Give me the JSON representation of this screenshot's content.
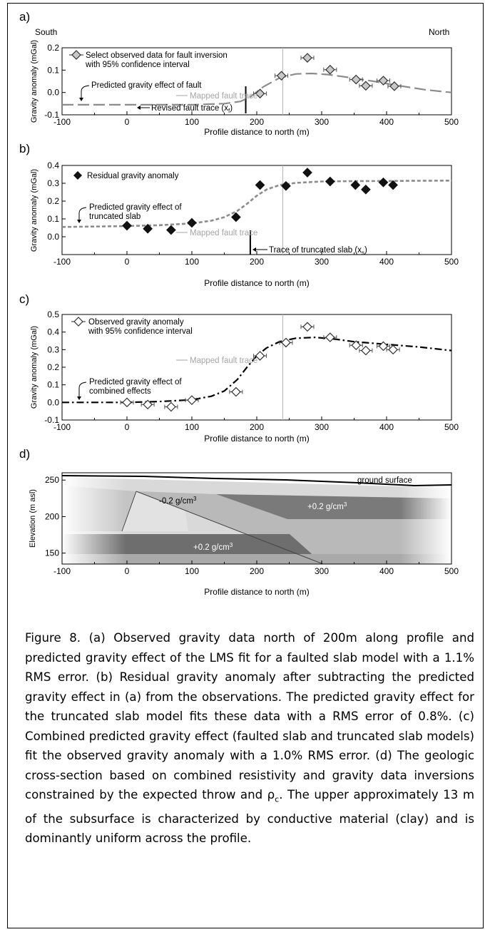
{
  "chart_data": [
    {
      "type": "scatter",
      "panel_label": "a)",
      "corner_left": "South",
      "corner_right": "North",
      "xlabel": "Profile distance to north (m)",
      "ylabel": "Gravity anomaly (mGal)",
      "xlim": [
        -100,
        500
      ],
      "ylim": [
        -0.1,
        0.2
      ],
      "xticks": [
        "-100",
        "0",
        "100",
        "200",
        "300",
        "400",
        "500"
      ],
      "yticks": [
        "-0.1",
        "0.0",
        "0.1",
        "0.2"
      ],
      "legend_line1": "Select observed data for fault inversion",
      "legend_line2": "with 95% confidence interval",
      "ann_pred": "Predicted gravity effect of fault",
      "ann_fault": "Mapped fault trace",
      "ann_revised": "Revised fault trace (x",
      "ann_revised_sub": "f",
      "ann_revised_end": ")",
      "points_x": [
        205,
        238,
        278,
        313,
        353,
        368,
        395,
        412
      ],
      "points_y": [
        -0.005,
        0.075,
        0.155,
        0.102,
        0.058,
        0.03,
        0.053,
        0.028
      ],
      "curve_x": [
        -100,
        0,
        100,
        150,
        175,
        190,
        210,
        235,
        260,
        285,
        310,
        340,
        380,
        420,
        460,
        500
      ],
      "curve_y": [
        -0.055,
        -0.055,
        -0.055,
        -0.05,
        -0.04,
        -0.02,
        0.025,
        0.065,
        0.083,
        0.085,
        0.08,
        0.068,
        0.05,
        0.03,
        0.012,
        0.0
      ],
      "mapped_fault_x": 240,
      "revised_fault_x": 183
    },
    {
      "type": "scatter",
      "panel_label": "b)",
      "xlabel": "Profile distance to north (m)",
      "ylabel": "Gravity anomaly (mGal)",
      "xlim": [
        -100,
        500
      ],
      "ylim": [
        -0.1,
        0.4
      ],
      "xticks": [
        "-100",
        "0",
        "100",
        "200",
        "300",
        "400",
        "500"
      ],
      "yticks": [
        "0.0",
        "0.1",
        "0.2",
        "0.3",
        "0.4"
      ],
      "legend_line1": "Residual gravity anomaly",
      "ann_pred1": "Predicted gravity effect of",
      "ann_pred2": "truncated slab",
      "ann_fault": "Mapped fault trace",
      "ann_trunc": "Trace of truncated slab (x",
      "ann_trunc_sub": "s",
      "ann_trunc_end": ")",
      "points_x": [
        0,
        32,
        68,
        100,
        168,
        205,
        245,
        278,
        313,
        352,
        368,
        395,
        410
      ],
      "points_y": [
        0.062,
        0.045,
        0.038,
        0.078,
        0.11,
        0.29,
        0.285,
        0.36,
        0.31,
        0.29,
        0.265,
        0.305,
        0.29
      ],
      "curve_x": [
        -100,
        0,
        50,
        100,
        130,
        150,
        170,
        185,
        200,
        215,
        235,
        260,
        300,
        350,
        400,
        450,
        500
      ],
      "curve_y": [
        0.055,
        0.06,
        0.065,
        0.075,
        0.09,
        0.11,
        0.145,
        0.185,
        0.23,
        0.265,
        0.29,
        0.302,
        0.31,
        0.312,
        0.313,
        0.314,
        0.315
      ],
      "mapped_fault_x": 240,
      "trunc_x": 190
    },
    {
      "type": "scatter",
      "panel_label": "c)",
      "xlabel": "Profile distance to north (m)",
      "ylabel": "Gravity anomaly (mGal)",
      "xlim": [
        -100,
        500
      ],
      "ylim": [
        -0.1,
        0.5
      ],
      "xticks": [
        "-100",
        "0",
        "100",
        "200",
        "300",
        "400",
        "500"
      ],
      "yticks": [
        "-0.1",
        "0.0",
        "0.1",
        "0.2",
        "0.3",
        "0.4",
        "0.5"
      ],
      "legend_line1": "Observed gravity anomaly",
      "legend_line2": "with 95% confidence interval",
      "ann_pred1": "Predicted gravity effect of",
      "ann_pred2": "combined effects",
      "ann_fault": "Mapped fault trace",
      "points_x": [
        0,
        32,
        68,
        100,
        168,
        205,
        245,
        278,
        313,
        353,
        368,
        395,
        410
      ],
      "points_y": [
        0.0,
        -0.012,
        -0.025,
        0.013,
        0.06,
        0.265,
        0.34,
        0.43,
        0.37,
        0.325,
        0.295,
        0.32,
        0.3
      ],
      "curve_x": [
        -100,
        0,
        50,
        100,
        130,
        150,
        170,
        185,
        200,
        215,
        235,
        260,
        290,
        320,
        350,
        400,
        450,
        500
      ],
      "curve_y": [
        0.0,
        0.0,
        0.005,
        0.015,
        0.035,
        0.065,
        0.13,
        0.2,
        0.265,
        0.31,
        0.345,
        0.365,
        0.37,
        0.36,
        0.345,
        0.33,
        0.315,
        0.295
      ],
      "mapped_fault_x": 240
    },
    {
      "type": "cross-section",
      "panel_label": "d)",
      "xlabel": "Profile distance to north (m)",
      "ylabel": "Elevation (m asl)",
      "xlim": [
        -100,
        500
      ],
      "ylim": [
        135,
        260
      ],
      "xticks": [
        "-100",
        "0",
        "100",
        "200",
        "300",
        "400",
        "500"
      ],
      "yticks": [
        "150",
        "200",
        "250"
      ],
      "label_ground": "ground surface",
      "label_neg": "-0.2 g/cm",
      "label_pos_upper": "+0.2 g/cm",
      "label_pos_lower": "+0.2 g/cm",
      "label_exp": "3"
    }
  ],
  "caption": "Figure 8.  (a) Observed gravity data north of 200m along profile and predicted gravity effect of the LMS fit for a faulted slab model with a 1.1% RMS error.  (b) Residual gravity anomaly after subtracting the predicted gravity effect in (a) from the observations.  The predicted gravity effect for the truncated slab model fits these data with a RMS error of 0.8%.  (c) Combined predicted gravity effect (faulted slab and truncated slab models) fit the observed gravity anomaly with a 1.0% RMS error.  (d) The geologic cross-section based on combined resistivity and gravity data inversions constrained by the expected throw and ρ",
  "caption_sub": "c",
  "caption_end": ".  The upper approximately 13 m of the subsurface is characterized by conductive material (clay) and is dominantly uniform across the profile."
}
